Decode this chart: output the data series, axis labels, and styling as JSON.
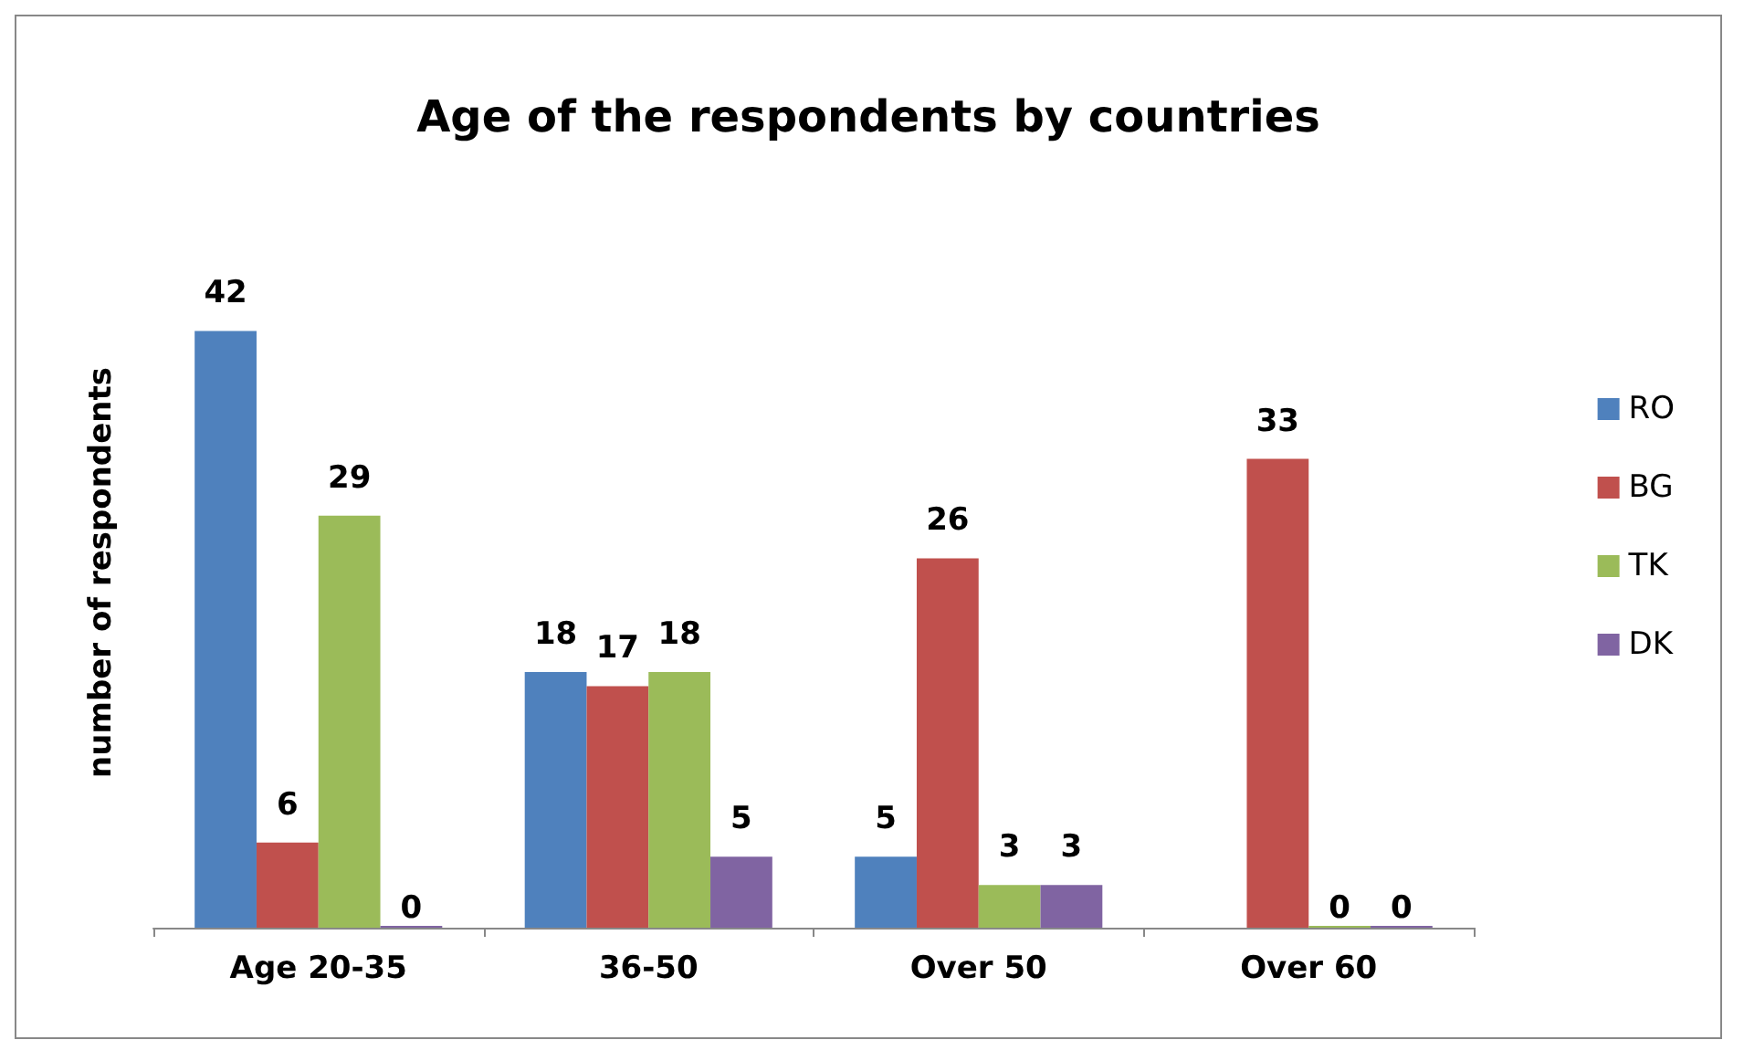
{
  "chart_data": {
    "type": "bar",
    "title": "Age of the respondents by countries",
    "ylabel": "number of respondents",
    "categories": [
      "Age 20-35",
      "36-50",
      "Over 50",
      "Over 60"
    ],
    "series": [
      {
        "name": "RO",
        "color": "#4f81bd",
        "values": [
          42,
          18,
          5,
          null
        ]
      },
      {
        "name": "BG",
        "color": "#c0504d",
        "values": [
          6,
          17,
          26,
          33
        ]
      },
      {
        "name": "TK",
        "color": "#9bbb59",
        "values": [
          29,
          18,
          3,
          0
        ]
      },
      {
        "name": "DK",
        "color": "#8064a2",
        "values": [
          0,
          5,
          3,
          0
        ]
      }
    ],
    "data_labels": true,
    "legend": "right",
    "grid": false
  }
}
